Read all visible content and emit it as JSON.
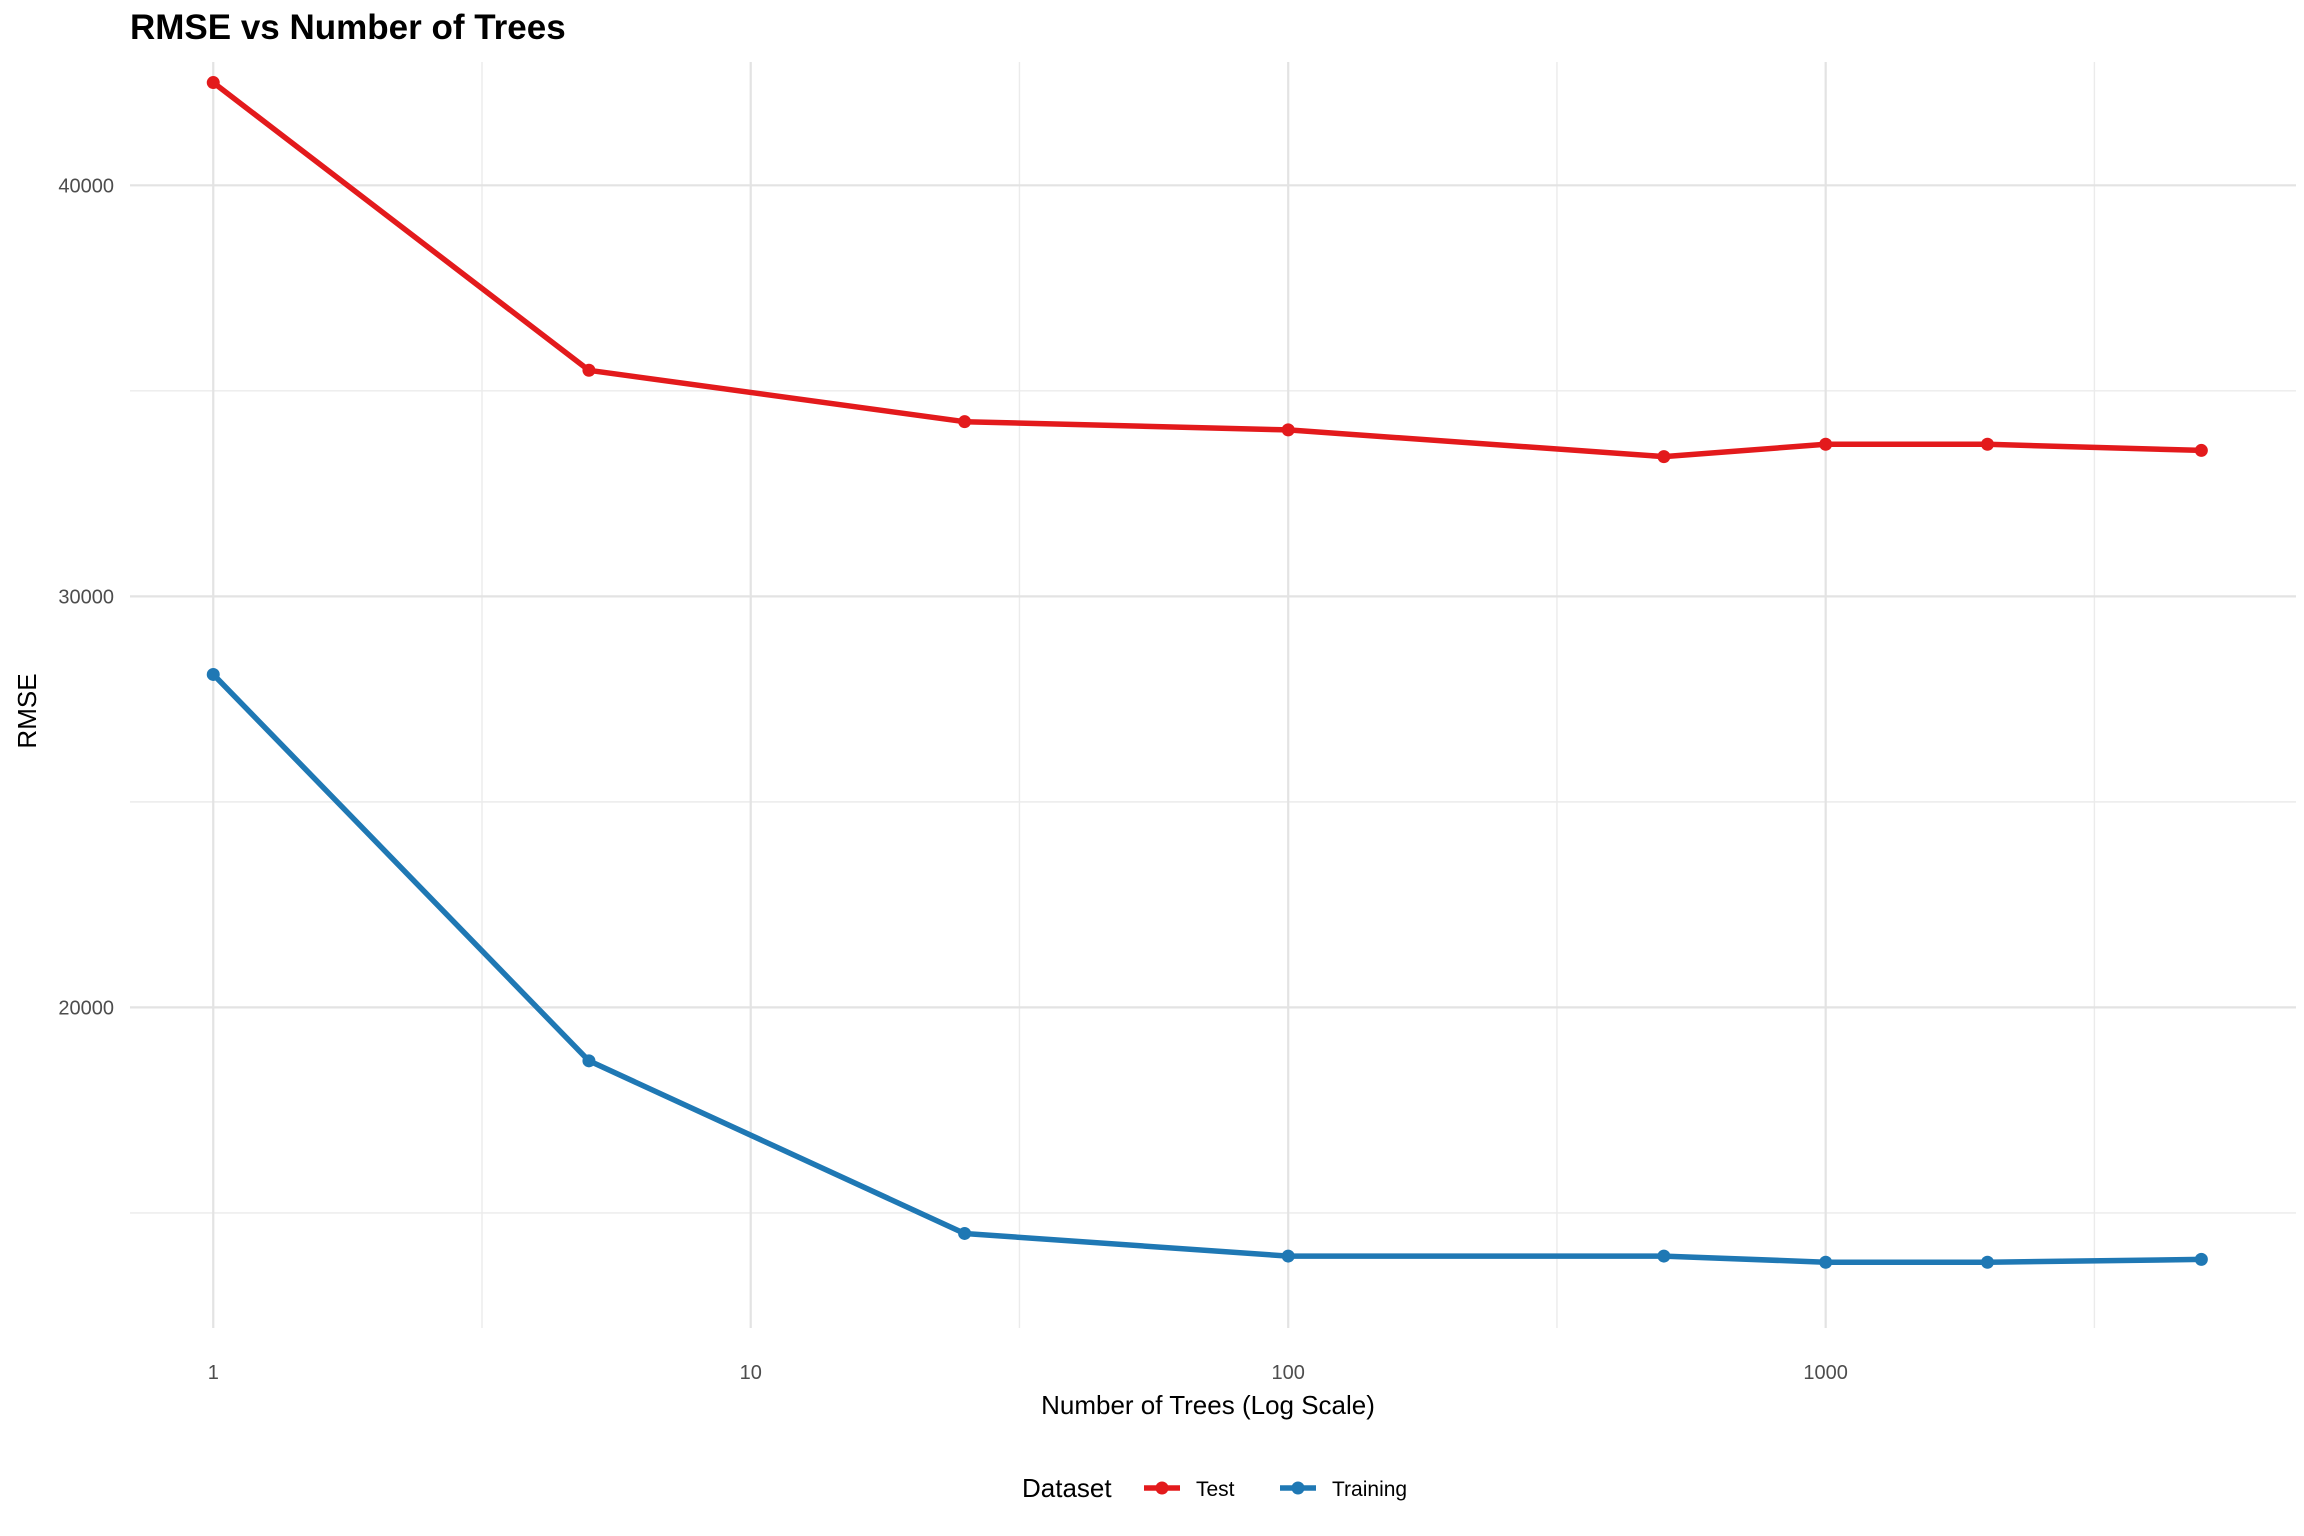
{
  "chart_data": {
    "type": "line",
    "title": "RMSE vs Number of Trees",
    "xlabel": "Number of Trees (Log Scale)",
    "ylabel": "RMSE",
    "x_scale": "log10",
    "x_ticks": [
      1,
      10,
      100,
      1000
    ],
    "x_tick_labels": [
      "1",
      "10",
      "100",
      "1000"
    ],
    "y_ticks": [
      20000,
      30000,
      40000
    ],
    "y_tick_labels": [
      "20000",
      "30000",
      "40000"
    ],
    "xlim": [
      0.7,
      7500
    ],
    "ylim": [
      12200,
      43000
    ],
    "grid": true,
    "legend": {
      "title": "Dataset",
      "position": "bottom"
    },
    "x": [
      1,
      5,
      25,
      100,
      500,
      1000,
      2000,
      5000
    ],
    "series": [
      {
        "name": "Test",
        "color": "#E31A1C",
        "values": [
          42500,
          35500,
          34250,
          34050,
          33400,
          33700,
          33700,
          33550
        ]
      },
      {
        "name": "Training",
        "color": "#1F78B4",
        "values": [
          28100,
          18700,
          14500,
          13950,
          13950,
          13800,
          13800,
          13870
        ]
      }
    ]
  }
}
